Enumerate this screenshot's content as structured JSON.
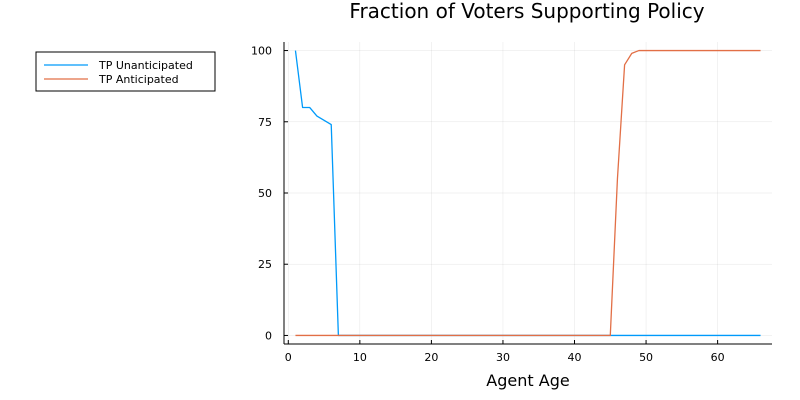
{
  "chart_data": {
    "type": "line",
    "title": "Fraction of Voters Supporting Policy",
    "xlabel": "Agent Age",
    "ylabel": "",
    "xlim": [
      -0.6,
      67.6
    ],
    "ylim": [
      -3,
      103
    ],
    "x_ticks": [
      0,
      10,
      20,
      30,
      40,
      50,
      60
    ],
    "y_ticks": [
      0,
      25,
      50,
      75,
      100
    ],
    "grid": true,
    "legend_position": "outer-top-left",
    "series": [
      {
        "name": "TP Unanticipated",
        "color": "#009AFA",
        "x": [
          1,
          2,
          3,
          4,
          5,
          6,
          7,
          8,
          66
        ],
        "y": [
          100,
          80,
          80,
          77,
          75.5,
          74,
          0,
          0,
          0
        ]
      },
      {
        "name": "TP Anticipated",
        "color": "#E26F46",
        "x": [
          1,
          45,
          46,
          47,
          48,
          49,
          50,
          66
        ],
        "y": [
          0,
          0,
          55,
          95,
          99,
          100,
          100,
          100
        ]
      }
    ]
  }
}
